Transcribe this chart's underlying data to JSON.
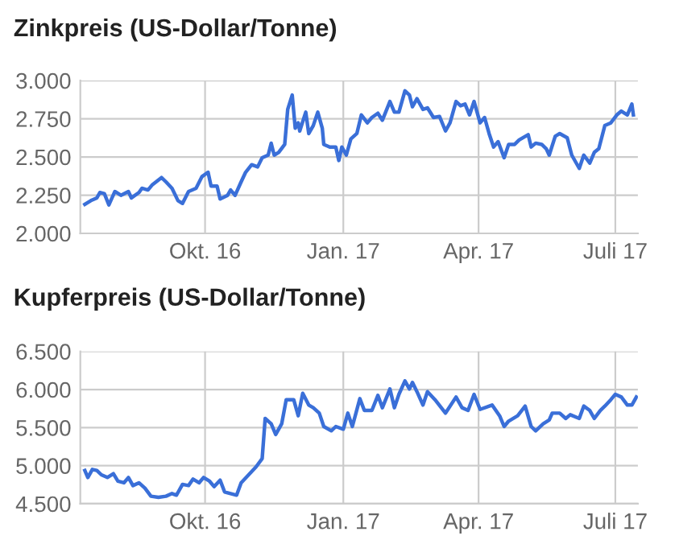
{
  "chart_data": [
    {
      "type": "line",
      "title": "Zinkpreis (US-Dollar/Tonne)",
      "grid": true,
      "legend": false,
      "xlim": [
        "2016-07-10",
        "2017-07-16"
      ],
      "xticks": [
        {
          "value": "2016-10-01",
          "label": "Okt. 16"
        },
        {
          "value": "2017-01-01",
          "label": "Jan. 17"
        },
        {
          "value": "2017-04-01",
          "label": "Apr. 17"
        },
        {
          "value": "2017-07-01",
          "label": "Juli 17"
        }
      ],
      "ylim": [
        2000,
        3000
      ],
      "yticks": [
        {
          "value": 2000,
          "label": "2.000"
        },
        {
          "value": 2250,
          "label": "2.250"
        },
        {
          "value": 2500,
          "label": "2.500"
        },
        {
          "value": 2750,
          "label": "2.750"
        },
        {
          "value": 3000,
          "label": "3.000"
        }
      ],
      "series": [
        {
          "color": "#3a6fd8",
          "x": [
            "2016-07-13",
            "2016-07-17",
            "2016-07-21",
            "2016-07-23",
            "2016-07-26",
            "2016-07-29",
            "2016-08-02",
            "2016-08-06",
            "2016-08-11",
            "2016-08-13",
            "2016-08-18",
            "2016-08-20",
            "2016-08-24",
            "2016-08-27",
            "2016-09-02",
            "2016-09-05",
            "2016-09-09",
            "2016-09-13",
            "2016-09-16",
            "2016-09-20",
            "2016-09-25",
            "2016-09-29",
            "2016-10-03",
            "2016-10-05",
            "2016-10-09",
            "2016-10-11",
            "2016-10-16",
            "2016-10-18",
            "2016-10-21",
            "2016-10-25",
            "2016-10-28",
            "2016-11-01",
            "2016-11-05",
            "2016-11-08",
            "2016-11-12",
            "2016-11-14",
            "2016-11-16",
            "2016-11-19",
            "2016-11-23",
            "2016-11-25",
            "2016-11-28",
            "2016-11-30",
            "2016-12-02",
            "2016-12-03",
            "2016-12-07",
            "2016-12-09",
            "2016-12-12",
            "2016-12-15",
            "2016-12-18",
            "2016-12-19",
            "2016-12-23",
            "2016-12-27",
            "2016-12-29",
            "2016-12-31",
            "2017-01-03",
            "2017-01-06",
            "2017-01-10",
            "2017-01-13",
            "2017-01-17",
            "2017-01-20",
            "2017-01-24",
            "2017-01-27",
            "2017-02-01",
            "2017-02-04",
            "2017-02-07",
            "2017-02-11",
            "2017-02-14",
            "2017-02-16",
            "2017-02-19",
            "2017-02-23",
            "2017-02-26",
            "2017-03-02",
            "2017-03-06",
            "2017-03-10",
            "2017-03-13",
            "2017-03-17",
            "2017-03-20",
            "2017-03-23",
            "2017-03-26",
            "2017-03-29",
            "2017-04-02",
            "2017-04-05",
            "2017-04-08",
            "2017-04-11",
            "2017-04-14",
            "2017-04-18",
            "2017-04-21",
            "2017-04-25",
            "2017-04-28",
            "2017-05-04",
            "2017-05-06",
            "2017-05-09",
            "2017-05-13",
            "2017-05-16",
            "2017-05-18",
            "2017-05-22",
            "2017-05-25",
            "2017-05-30",
            "2017-06-02",
            "2017-06-07",
            "2017-06-10",
            "2017-06-14",
            "2017-06-17",
            "2017-06-20",
            "2017-06-24",
            "2017-06-28",
            "2017-07-02",
            "2017-07-05",
            "2017-07-09",
            "2017-07-12",
            "2017-07-13"
          ],
          "values": [
            2190,
            2214,
            2232,
            2267,
            2260,
            2186,
            2274,
            2249,
            2274,
            2232,
            2267,
            2295,
            2284,
            2319,
            2365,
            2337,
            2295,
            2214,
            2196,
            2274,
            2295,
            2372,
            2400,
            2309,
            2309,
            2225,
            2249,
            2284,
            2249,
            2337,
            2400,
            2449,
            2435,
            2495,
            2512,
            2590,
            2512,
            2530,
            2582,
            2811,
            2905,
            2688,
            2723,
            2670,
            2793,
            2653,
            2705,
            2793,
            2688,
            2582,
            2565,
            2565,
            2477,
            2565,
            2512,
            2618,
            2653,
            2775,
            2723,
            2758,
            2786,
            2740,
            2863,
            2793,
            2793,
            2933,
            2905,
            2828,
            2881,
            2811,
            2821,
            2758,
            2765,
            2670,
            2723,
            2863,
            2835,
            2846,
            2775,
            2863,
            2723,
            2758,
            2653,
            2565,
            2600,
            2495,
            2582,
            2582,
            2611,
            2646,
            2565,
            2590,
            2582,
            2554,
            2512,
            2635,
            2653,
            2625,
            2512,
            2425,
            2512,
            2460,
            2530,
            2554,
            2705,
            2723,
            2775,
            2800,
            2775,
            2846,
            2775
          ]
        }
      ]
    },
    {
      "type": "line",
      "title": "Kupferpreis (US-Dollar/Tonne)",
      "grid": true,
      "legend": false,
      "xlim": [
        "2016-07-10",
        "2017-07-16"
      ],
      "xticks": [
        {
          "value": "2016-10-01",
          "label": "Okt. 16"
        },
        {
          "value": "2017-01-01",
          "label": "Jan. 17"
        },
        {
          "value": "2017-04-01",
          "label": "Apr. 17"
        },
        {
          "value": "2017-07-01",
          "label": "Juli 17"
        }
      ],
      "ylim": [
        4500,
        6500
      ],
      "yticks": [
        {
          "value": 4500,
          "label": "4.500"
        },
        {
          "value": 5000,
          "label": "5.000"
        },
        {
          "value": 5500,
          "label": "5.500"
        },
        {
          "value": 6000,
          "label": "6.000"
        },
        {
          "value": 6500,
          "label": "6.500"
        }
      ],
      "series": [
        {
          "color": "#3a6fd8",
          "x": [
            "2016-07-13",
            "2016-07-15",
            "2016-07-18",
            "2016-07-21",
            "2016-07-24",
            "2016-07-28",
            "2016-08-01",
            "2016-08-04",
            "2016-08-08",
            "2016-08-11",
            "2016-08-14",
            "2016-08-18",
            "2016-08-22",
            "2016-08-26",
            "2016-08-31",
            "2016-09-05",
            "2016-09-09",
            "2016-09-12",
            "2016-09-16",
            "2016-09-20",
            "2016-09-23",
            "2016-09-27",
            "2016-09-30",
            "2016-10-04",
            "2016-10-07",
            "2016-10-11",
            "2016-10-14",
            "2016-10-18",
            "2016-10-22",
            "2016-10-25",
            "2016-10-30",
            "2016-11-04",
            "2016-11-08",
            "2016-11-10",
            "2016-11-14",
            "2016-11-17",
            "2016-11-21",
            "2016-11-24",
            "2016-11-29",
            "2016-12-02",
            "2016-12-05",
            "2016-12-09",
            "2016-12-12",
            "2016-12-16",
            "2016-12-19",
            "2016-12-24",
            "2016-12-27",
            "2017-01-01",
            "2017-01-04",
            "2017-01-07",
            "2017-01-12",
            "2017-01-15",
            "2017-01-20",
            "2017-01-24",
            "2017-01-27",
            "2017-02-01",
            "2017-02-04",
            "2017-02-07",
            "2017-02-11",
            "2017-02-14",
            "2017-02-16",
            "2017-02-19",
            "2017-02-23",
            "2017-02-26",
            "2017-03-03",
            "2017-03-10",
            "2017-03-17",
            "2017-03-21",
            "2017-03-25",
            "2017-03-29",
            "2017-04-02",
            "2017-04-10",
            "2017-04-15",
            "2017-04-18",
            "2017-04-21",
            "2017-04-27",
            "2017-05-02",
            "2017-05-06",
            "2017-05-09",
            "2017-05-14",
            "2017-05-18",
            "2017-05-20",
            "2017-05-25",
            "2017-05-29",
            "2017-06-01",
            "2017-06-07",
            "2017-06-10",
            "2017-06-14",
            "2017-06-17",
            "2017-06-21",
            "2017-06-24",
            "2017-06-28",
            "2017-07-01",
            "2017-07-05",
            "2017-07-09",
            "2017-07-12",
            "2017-07-15"
          ],
          "values": [
            4937,
            4845,
            4951,
            4937,
            4880,
            4845,
            4894,
            4796,
            4775,
            4845,
            4739,
            4775,
            4704,
            4599,
            4585,
            4599,
            4634,
            4613,
            4754,
            4739,
            4824,
            4775,
            4845,
            4796,
            4725,
            4810,
            4655,
            4634,
            4613,
            4775,
            4880,
            4986,
            5092,
            5620,
            5549,
            5409,
            5549,
            5866,
            5866,
            5655,
            5951,
            5796,
            5761,
            5690,
            5514,
            5458,
            5514,
            5479,
            5690,
            5514,
            5880,
            5725,
            5725,
            5923,
            5761,
            6007,
            5761,
            5937,
            6113,
            6007,
            6092,
            5972,
            5796,
            5972,
            5866,
            5690,
            5901,
            5761,
            5725,
            5937,
            5739,
            5796,
            5655,
            5514,
            5585,
            5655,
            5782,
            5514,
            5458,
            5549,
            5599,
            5690,
            5690,
            5620,
            5669,
            5620,
            5782,
            5725,
            5620,
            5725,
            5782,
            5866,
            5937,
            5901,
            5796,
            5796,
            5901
          ]
        }
      ]
    }
  ]
}
